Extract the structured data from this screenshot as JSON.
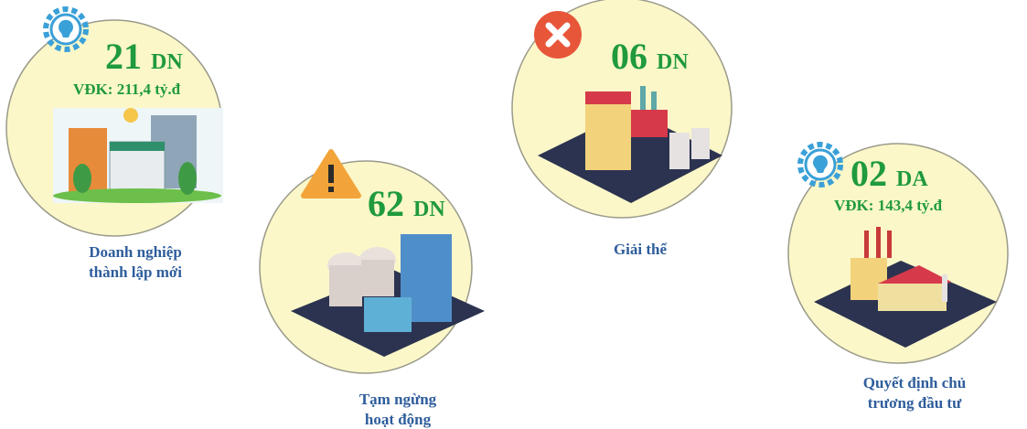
{
  "items": [
    {
      "count": "21",
      "unit": "DN",
      "detail": "VĐK: 211,4 tỷ.đ",
      "caption": [
        "Doanh nghiệp",
        "thành lập mới"
      ]
    },
    {
      "count": "62",
      "unit": "DN",
      "caption": [
        "Tạm ngừng",
        "hoạt động"
      ]
    },
    {
      "count": "06",
      "unit": "DN",
      "caption": [
        "Giải thể"
      ]
    },
    {
      "count": "02",
      "unit": "DA",
      "detail": "VĐK: 143,4 tỷ.đ",
      "caption": [
        "Quyết định chủ",
        "trương đầu tư"
      ]
    }
  ]
}
